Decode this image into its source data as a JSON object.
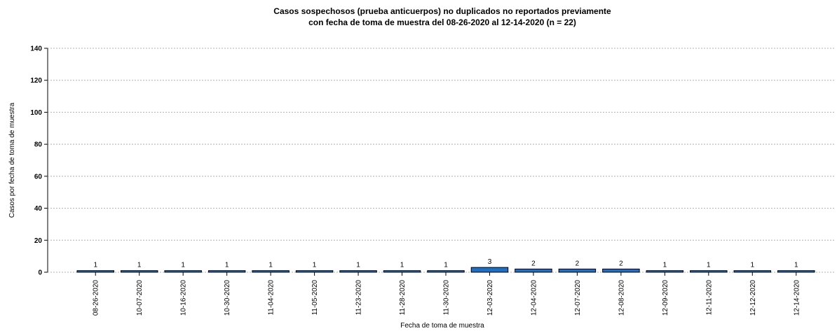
{
  "chart_data": {
    "type": "bar",
    "title": [
      "Casos sospechosos (prueba anticuerpos) no duplicados no reportados previamente",
      "con fecha de toma de muestra del 08-26-2020 al 12-14-2020 (n = 22)"
    ],
    "x_label": "Fecha de toma de muestra",
    "y_label": "Casos por fecha de toma de muestra",
    "categories": [
      "08-26-2020",
      "10-07-2020",
      "10-16-2020",
      "10-30-2020",
      "11-04-2020",
      "11-05-2020",
      "11-23-2020",
      "11-28-2020",
      "11-30-2020",
      "12-03-2020",
      "12-04-2020",
      "12-07-2020",
      "12-08-2020",
      "12-09-2020",
      "12-11-2020",
      "12-12-2020",
      "12-14-2020"
    ],
    "values": [
      1,
      1,
      1,
      1,
      1,
      1,
      1,
      1,
      1,
      3,
      2,
      2,
      2,
      1,
      1,
      1,
      1
    ],
    "color": "#1f6fc6",
    "ylim": [
      0,
      140
    ],
    "yticks": [
      0,
      20,
      40,
      60,
      80,
      100,
      120,
      140
    ],
    "grid": true
  }
}
